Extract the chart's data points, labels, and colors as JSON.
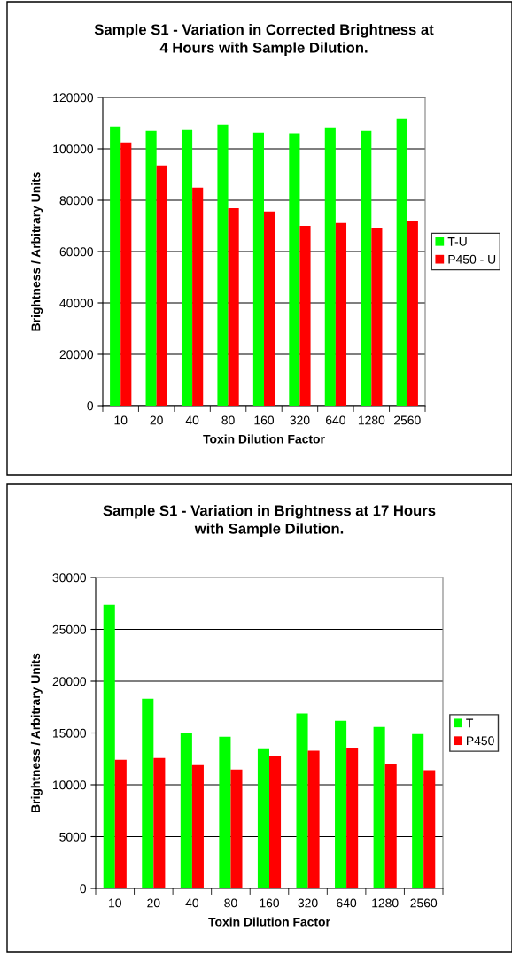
{
  "chart_data": [
    {
      "type": "bar",
      "title": "Sample S1 - Variation in Corrected Brightness at\n4 Hours with Sample Dilution.",
      "xlabel": "Toxin Dilution Factor",
      "ylabel": "Brightness / Arbitrary Units",
      "categories": [
        "10",
        "20",
        "40",
        "80",
        "160",
        "320",
        "640",
        "1280",
        "2560"
      ],
      "series": [
        {
          "name": "T-U",
          "color": "#00ff00",
          "values": [
            108700,
            107000,
            107300,
            109400,
            106300,
            106000,
            108400,
            107000,
            111800
          ]
        },
        {
          "name": "P450 - U",
          "color": "#ff0000",
          "values": [
            102500,
            93500,
            84900,
            76900,
            75600,
            70000,
            71100,
            69300,
            71700
          ]
        }
      ],
      "ylim": [
        0,
        120000
      ],
      "yticks": [
        0,
        20000,
        40000,
        60000,
        80000,
        100000,
        120000
      ],
      "grid": "y",
      "legend": "right"
    },
    {
      "type": "bar",
      "title": "Sample S1 - Variation in Brightness at 17 Hours\nwith Sample Dilution.",
      "xlabel": "Toxin Dilution Factor",
      "ylabel": "Brightness / Arbitrary Units",
      "categories": [
        "10",
        "20",
        "40",
        "80",
        "160",
        "320",
        "640",
        "1280",
        "2560"
      ],
      "series": [
        {
          "name": "T",
          "color": "#00ff00",
          "values": [
            27380,
            18320,
            15010,
            14640,
            13450,
            16870,
            16180,
            15580,
            14900
          ]
        },
        {
          "name": "P450",
          "color": "#ff0000",
          "values": [
            12420,
            12590,
            11910,
            11480,
            12760,
            13280,
            13530,
            11990,
            11400
          ]
        }
      ],
      "ylim": [
        0,
        30000
      ],
      "yticks": [
        0,
        5000,
        10000,
        15000,
        20000,
        25000,
        30000
      ],
      "grid": "y",
      "legend": "right"
    }
  ]
}
